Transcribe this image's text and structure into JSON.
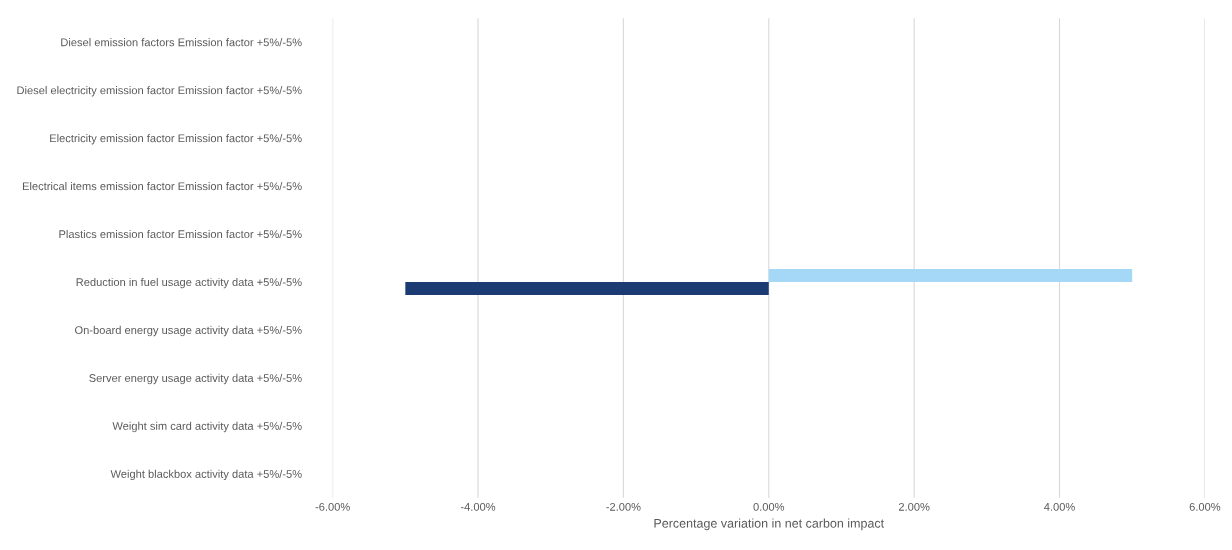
{
  "chart_data": {
    "type": "bar",
    "orientation": "horizontal",
    "xlabel": "Percentage variation in net carbon impact",
    "categories": [
      "Diesel emission factors Emission factor +5%/-5%",
      "Diesel electricity emission factor Emission factor +5%/-5%",
      "Electricity emission factor Emission factor +5%/-5%",
      "Electrical items emission factor Emission factor +5%/-5%",
      "Plastics emission factor Emission factor +5%/-5%",
      "Reduction in fuel usage activity data +5%/-5%",
      "On-board energy usage activity data +5%/-5%",
      "Server energy usage activity data +5%/-5%",
      "Weight sim card activity data +5%/-5%",
      "Weight blackbox activity data +5%/-5%"
    ],
    "series": [
      {
        "color": "#a5d7f7",
        "values": [
          0,
          0,
          0,
          0,
          0,
          5,
          0,
          0,
          0,
          0
        ]
      },
      {
        "color": "#1c3b73",
        "values": [
          0,
          0,
          0,
          0,
          0,
          -5,
          0,
          0,
          0,
          0
        ]
      }
    ],
    "xlim": [
      -6,
      6
    ],
    "xticks": [
      {
        "value": -6,
        "label": "-6.00%"
      },
      {
        "value": -4,
        "label": "-4.00%"
      },
      {
        "value": -2,
        "label": "-2.00%"
      },
      {
        "value": 0,
        "label": "0.00%"
      },
      {
        "value": 2,
        "label": "2.00%"
      },
      {
        "value": 4,
        "label": "4.00%"
      },
      {
        "value": 6,
        "label": "6.00%"
      }
    ],
    "grid": "x",
    "legend": false
  }
}
